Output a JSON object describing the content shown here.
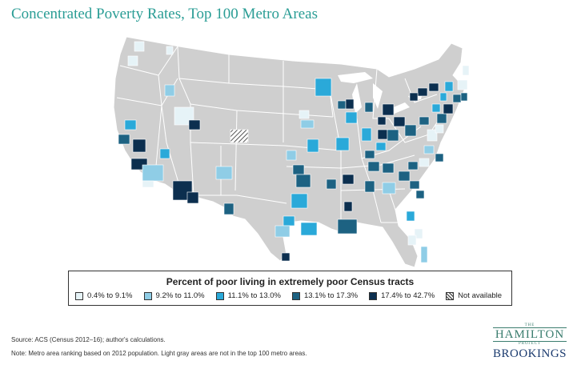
{
  "title": "Concentrated Poverty Rates, Top 100 Metro Areas",
  "legend": {
    "title": "Percent of poor living in extremely poor Census tracts",
    "items": [
      {
        "label": "0.4% to 9.1%",
        "color": "#e6f3f7"
      },
      {
        "label": "9.2% to 11.0%",
        "color": "#8fcde6"
      },
      {
        "label": "11.1% to 13.0%",
        "color": "#2aa9d9"
      },
      {
        "label": "13.1% to 17.3%",
        "color": "#1d6282"
      },
      {
        "label": "17.4% to 42.7%",
        "color": "#0c2f4f"
      },
      {
        "label": "Not available",
        "color": "hatched"
      }
    ]
  },
  "colors": {
    "land": "#cfcfcf",
    "state_border": "#ffffff",
    "title": "#2a9d95"
  },
  "footer": {
    "source": "Source: ACS (Census 2012–16); author's calculations.",
    "note": "Note: Metro area ranking based on 2012 population. Light gray areas are not in the top 100 metro areas."
  },
  "logo": {
    "the": "THE",
    "hamilton": "HAMILTON",
    "project": "PROJECT",
    "brookings": "BROOKINGS"
  }
}
